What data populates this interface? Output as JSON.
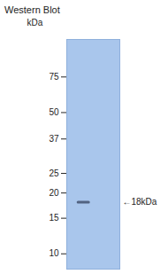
{
  "chart_data": {
    "type": "blot",
    "title": "Western Blot",
    "ylabel": "kDa",
    "log": "y",
    "ylim": [
      8.4,
      115
    ],
    "yticks": [
      10,
      15,
      20,
      25,
      37,
      50,
      75
    ],
    "bands": [
      {
        "value": 18,
        "label": "←18kDa"
      }
    ],
    "color": "#a9c6ec"
  }
}
